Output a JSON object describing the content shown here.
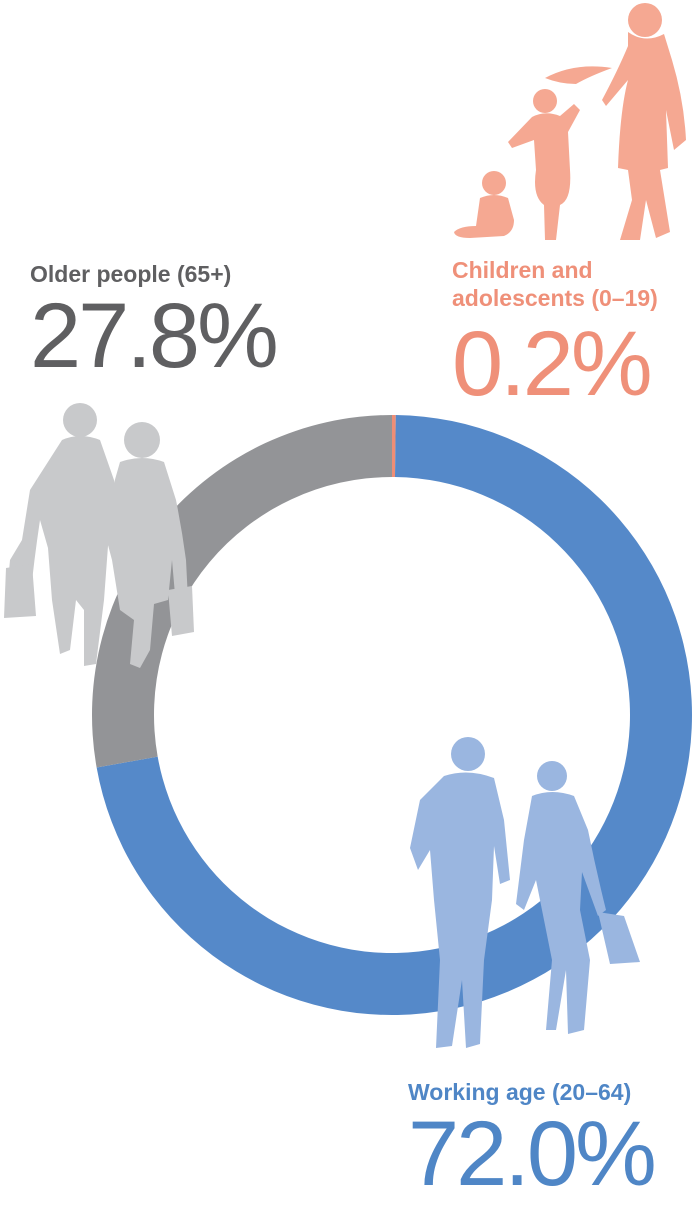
{
  "chart_data": {
    "type": "pie",
    "donut": true,
    "categories": [
      "Children and adolescents (0–19)",
      "Working age (20–64)",
      "Older people (65+)"
    ],
    "values": [
      0.2,
      72.0,
      27.8
    ],
    "value_labels": [
      "0.2%",
      "72.0%",
      "27.8%"
    ],
    "colors": [
      "#ee8e76",
      "#5589c9",
      "#939497"
    ],
    "start_angle_deg": 0,
    "direction": "clockwise"
  },
  "labels": {
    "children": {
      "line1": "Children and",
      "line2": "adolescents (0–19)",
      "value": "0.2%"
    },
    "older": {
      "title": "Older people (65+)",
      "value": "27.8%"
    },
    "working": {
      "title": "Working age (20–64)",
      "value": "72.0%"
    }
  },
  "colors": {
    "children_silhouette": "#f5a892",
    "older_silhouette": "#c8c9cb",
    "working_silhouette": "#9ab6e0"
  }
}
